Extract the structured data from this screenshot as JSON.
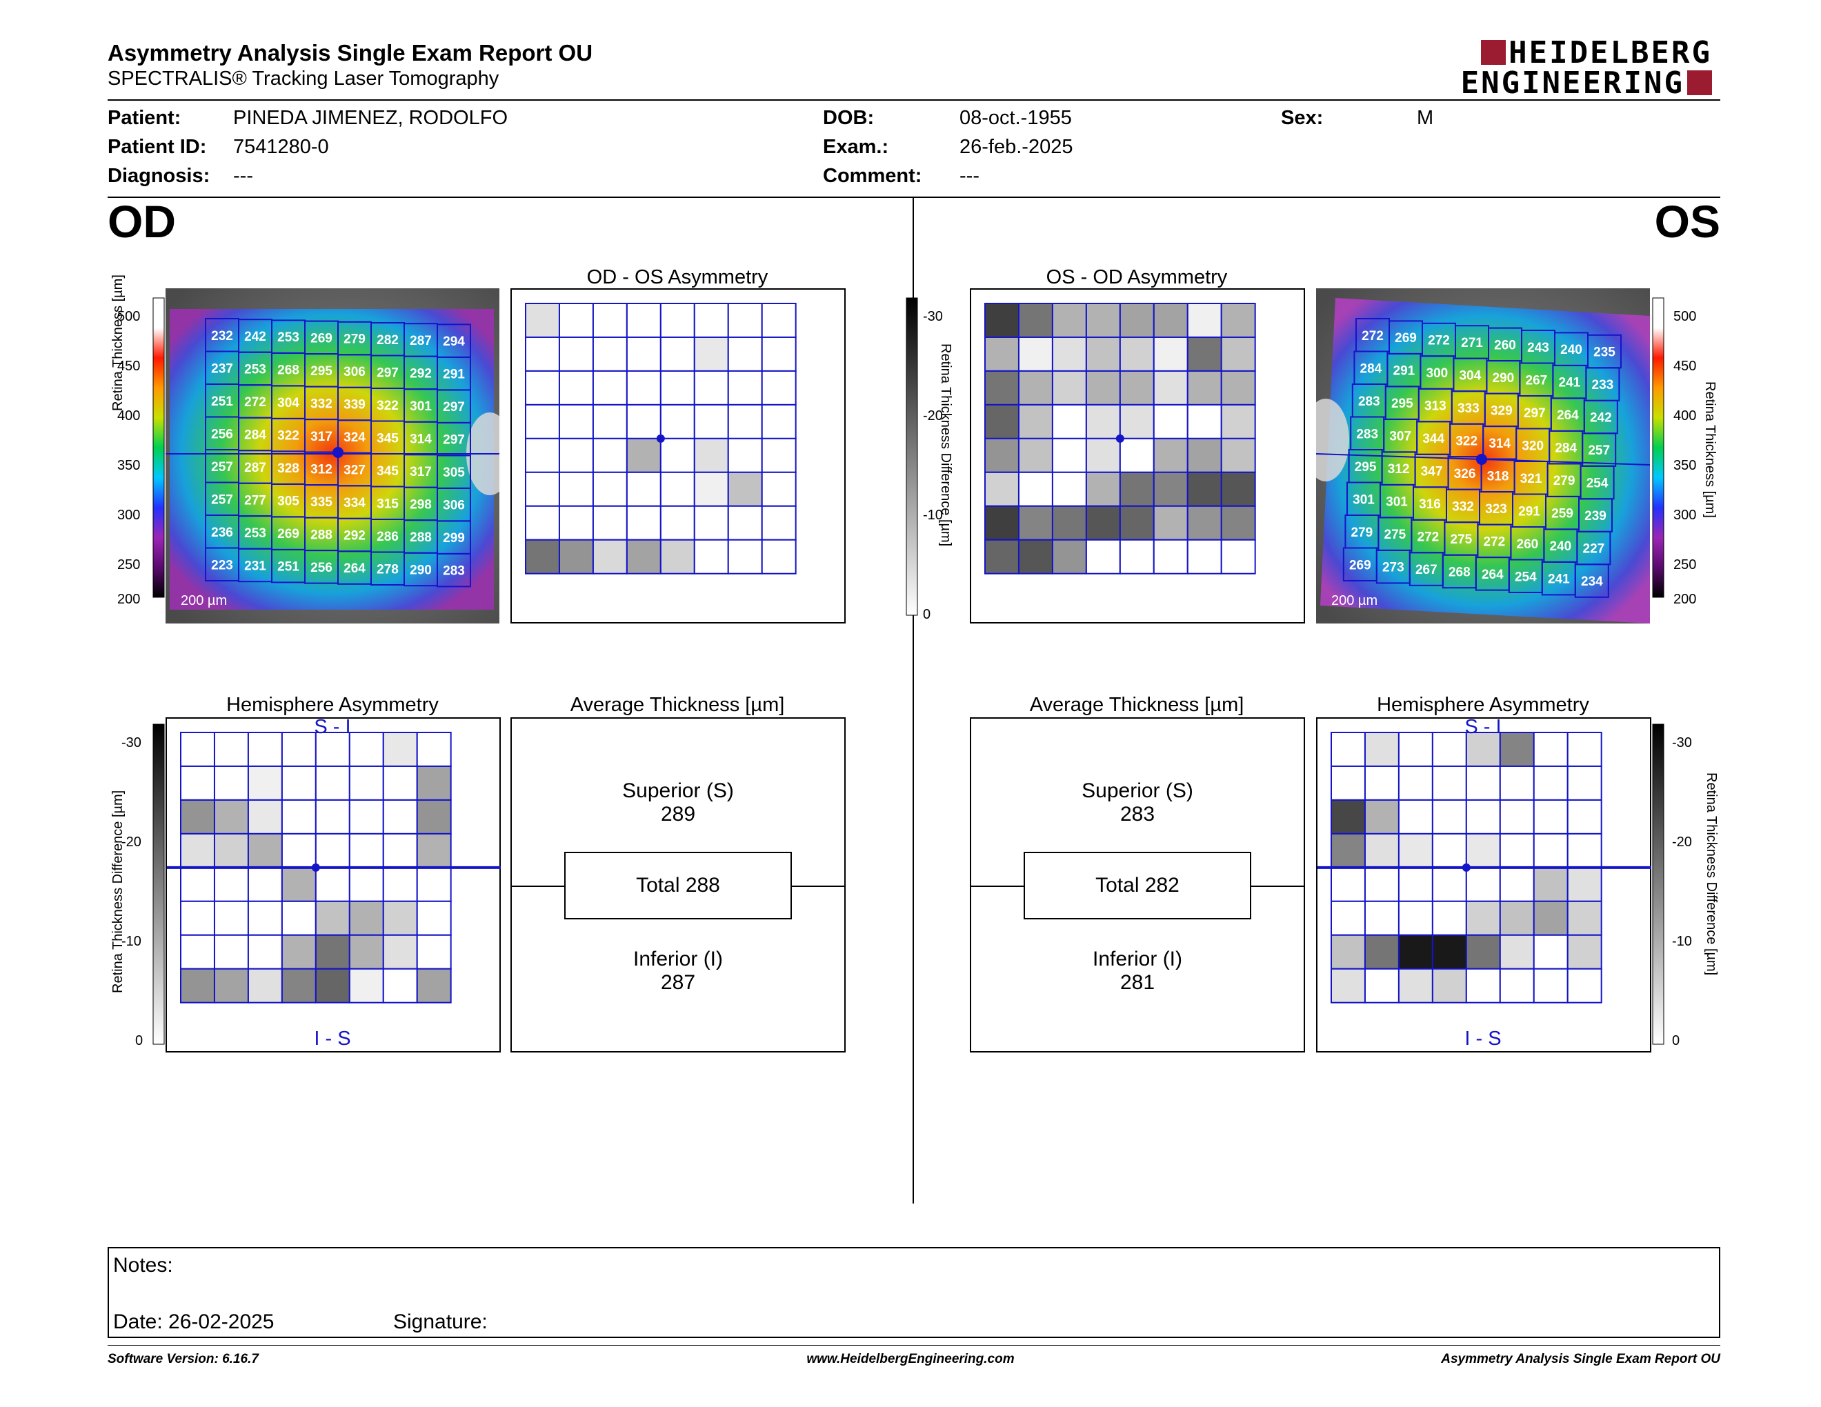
{
  "header": {
    "title": "Asymmetry Analysis Single Exam Report OU",
    "subtitle": "SPECTRALIS® Tracking Laser Tomography",
    "logo_line1": "HEIDELBERG",
    "logo_line2": "ENGINEERING"
  },
  "patient": {
    "patient_label": "Patient:",
    "patient_value": "PINEDA JIMENEZ, RODOLFO",
    "id_label": "Patient ID:",
    "id_value": "7541280-0",
    "diag_label": "Diagnosis:",
    "diag_value": "---",
    "dob_label": "DOB:",
    "dob_value": "08-oct.-1955",
    "exam_label": "Exam.:",
    "exam_value": "26-feb.-2025",
    "comment_label": "Comment:",
    "comment_value": "---",
    "sex_label": "Sex:",
    "sex_value": "M"
  },
  "od": {
    "eye_label": "OD",
    "asym_title": "OD - OS Asymmetry",
    "hemi_title": "Hemisphere Asymmetry",
    "avg_title": "Average Thickness [µm]",
    "superior_label": "Superior (S)",
    "superior_value": "289",
    "total_label": "Total 288",
    "inferior_label": "Inferior (I)",
    "inferior_value": "287",
    "hemi_top": "S - I",
    "hemi_bottom": "I - S",
    "scale_label": "200 µm",
    "thickness_grid": [
      [
        232,
        242,
        253,
        269,
        279,
        282,
        287,
        294
      ],
      [
        237,
        253,
        268,
        295,
        306,
        297,
        292,
        291
      ],
      [
        251,
        272,
        304,
        332,
        339,
        322,
        301,
        297
      ],
      [
        256,
        284,
        322,
        317,
        324,
        345,
        314,
        297
      ],
      [
        257,
        287,
        328,
        312,
        327,
        345,
        317,
        305
      ],
      [
        257,
        277,
        305,
        335,
        334,
        315,
        298,
        306
      ],
      [
        236,
        253,
        269,
        288,
        292,
        286,
        288,
        299
      ],
      [
        223,
        231,
        251,
        256,
        264,
        278,
        290,
        283
      ]
    ],
    "asym_grid": [
      [
        4,
        0,
        0,
        0,
        0,
        0,
        0,
        0
      ],
      [
        0,
        0,
        0,
        0,
        0,
        3,
        0,
        0
      ],
      [
        0,
        0,
        0,
        0,
        0,
        0,
        0,
        0
      ],
      [
        0,
        0,
        0,
        0,
        0,
        0,
        0,
        0
      ],
      [
        0,
        0,
        0,
        10,
        0,
        4,
        0,
        0
      ],
      [
        0,
        0,
        0,
        0,
        0,
        2,
        8,
        0
      ],
      [
        0,
        0,
        0,
        0,
        0,
        0,
        0,
        0
      ],
      [
        18,
        14,
        5,
        12,
        6,
        0,
        0,
        0
      ]
    ],
    "hemi_grid": [
      [
        0,
        0,
        0,
        0,
        0,
        0,
        3,
        0
      ],
      [
        0,
        0,
        2,
        0,
        0,
        0,
        0,
        12
      ],
      [
        14,
        10,
        3,
        0,
        0,
        0,
        0,
        14
      ],
      [
        4,
        6,
        10,
        0,
        0,
        0,
        0,
        10
      ],
      [
        0,
        0,
        0,
        10,
        0,
        0,
        0,
        0
      ],
      [
        0,
        0,
        0,
        0,
        8,
        10,
        6,
        0
      ],
      [
        0,
        0,
        0,
        10,
        18,
        10,
        4,
        0
      ],
      [
        14,
        12,
        4,
        16,
        20,
        2,
        0,
        12
      ]
    ]
  },
  "os": {
    "eye_label": "OS",
    "asym_title": "OS - OD Asymmetry",
    "hemi_title": "Hemisphere Asymmetry",
    "avg_title": "Average Thickness [µm]",
    "superior_label": "Superior (S)",
    "superior_value": "283",
    "total_label": "Total 282",
    "inferior_label": "Inferior (I)",
    "inferior_value": "281",
    "hemi_top": "S - I",
    "hemi_bottom": "I - S",
    "scale_label": "200 µm",
    "thickness_grid": [
      [
        272,
        269,
        272,
        271,
        260,
        243,
        240,
        235
      ],
      [
        284,
        291,
        300,
        304,
        290,
        267,
        241,
        233
      ],
      [
        283,
        295,
        313,
        333,
        329,
        297,
        264,
        242
      ],
      [
        283,
        307,
        344,
        322,
        314,
        320,
        284,
        257
      ],
      [
        295,
        312,
        347,
        326,
        318,
        321,
        279,
        254
      ],
      [
        301,
        301,
        316,
        332,
        323,
        291,
        259,
        239
      ],
      [
        279,
        275,
        272,
        275,
        272,
        260,
        240,
        227
      ],
      [
        269,
        273,
        267,
        268,
        264,
        254,
        241,
        234
      ]
    ],
    "asym_grid": [
      [
        25,
        18,
        10,
        10,
        12,
        12,
        2,
        10
      ],
      [
        10,
        2,
        4,
        8,
        6,
        2,
        18,
        8
      ],
      [
        18,
        10,
        6,
        10,
        10,
        4,
        10,
        10
      ],
      [
        20,
        8,
        0,
        4,
        4,
        0,
        0,
        6
      ],
      [
        14,
        8,
        0,
        4,
        0,
        10,
        12,
        8
      ],
      [
        6,
        0,
        0,
        10,
        18,
        16,
        22,
        22
      ],
      [
        25,
        16,
        18,
        22,
        20,
        10,
        14,
        16
      ],
      [
        20,
        22,
        14,
        0,
        0,
        0,
        0,
        0
      ]
    ],
    "hemi_grid": [
      [
        0,
        4,
        0,
        0,
        6,
        16,
        0,
        0
      ],
      [
        0,
        0,
        0,
        0,
        0,
        0,
        0,
        0
      ],
      [
        24,
        10,
        0,
        0,
        0,
        0,
        0,
        0
      ],
      [
        16,
        4,
        3,
        0,
        3,
        0,
        0,
        0
      ],
      [
        0,
        0,
        0,
        0,
        0,
        0,
        8,
        4
      ],
      [
        0,
        0,
        0,
        0,
        6,
        8,
        12,
        6
      ],
      [
        8,
        18,
        30,
        30,
        18,
        4,
        0,
        6
      ],
      [
        4,
        0,
        4,
        6,
        0,
        0,
        0,
        0
      ]
    ]
  },
  "colorbars": {
    "thickness_title": "Retina Thickness [µm]",
    "thickness_ticks": [
      "500",
      "450",
      "400",
      "350",
      "300",
      "250",
      "200"
    ],
    "difference_title": "Retina Thickness Difference [µm]",
    "difference_ticks": [
      "-30",
      "-20",
      "-10",
      "0"
    ]
  },
  "notes": {
    "notes_label": "Notes:",
    "date_label": "Date: 26-02-2025",
    "signature_label": "Signature:"
  },
  "footer": {
    "left": "Software Version: 6.16.7",
    "center": "www.HeidelbergEngineering.com",
    "right": "Asymmetry Analysis Single Exam Report OU"
  },
  "colors": {
    "grid_blue": "#1414c8",
    "brand_red": "#9b1b30"
  }
}
